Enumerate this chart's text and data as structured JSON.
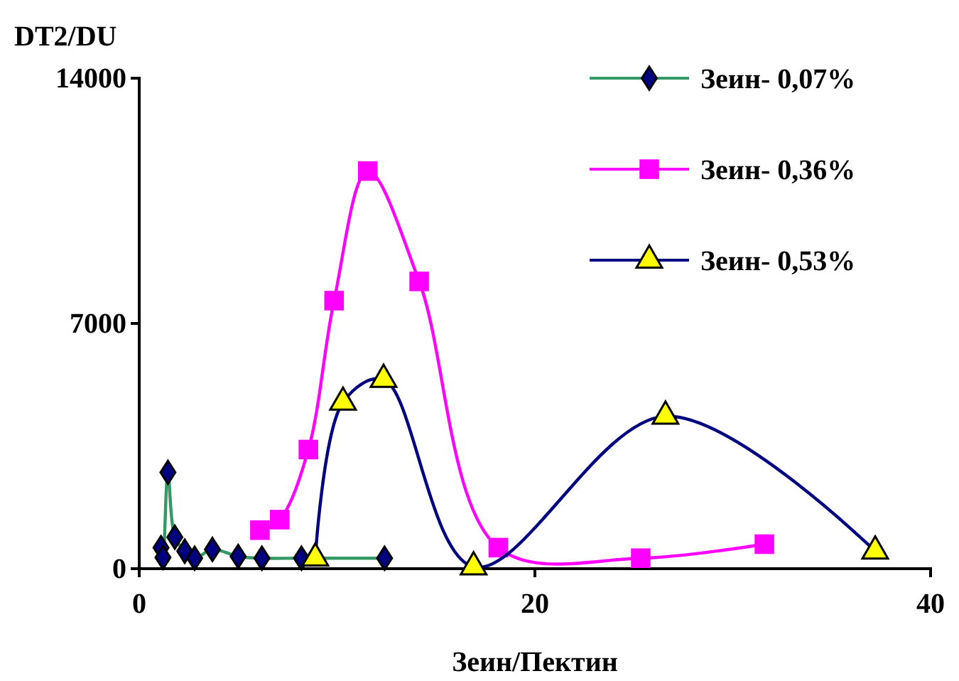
{
  "chart_data": {
    "type": "line",
    "xlabel": "Зеин/Пектин",
    "ylabel": "DT2/DU",
    "xlim": [
      0,
      40
    ],
    "xticks": [
      0,
      20,
      40
    ],
    "ylim": [
      0,
      14000
    ],
    "yticks": [
      0,
      7000,
      14000
    ],
    "grid": false,
    "legend": "top right",
    "series": [
      {
        "name": "Зеин- 0,07%",
        "color": "#339966",
        "marker": "diamond",
        "x": [
          1.1,
          1.2,
          1.45,
          1.8,
          2.3,
          2.8,
          3.7,
          5.0,
          6.2,
          8.2,
          12.4
        ],
        "values": [
          600,
          320,
          2750,
          900,
          500,
          300,
          550,
          350,
          300,
          300,
          300
        ]
      },
      {
        "name": "Зеин- 0,36%",
        "color": "#ff00ff",
        "marker": "square",
        "x": [
          6.1,
          7.1,
          8.55,
          9.85,
          11.55,
          14.15,
          18.15,
          25.35,
          31.6
        ],
        "values": [
          1100,
          1400,
          3400,
          7650,
          11350,
          8200,
          600,
          300,
          700
        ]
      },
      {
        "name": "Зеин- 0,53%",
        "color": "#000080",
        "marker": "triangle",
        "x": [
          8.9,
          10.3,
          12.35,
          16.9,
          26.6,
          37.2
        ],
        "values": [
          300,
          4750,
          5400,
          50,
          4350,
          500
        ]
      }
    ]
  }
}
